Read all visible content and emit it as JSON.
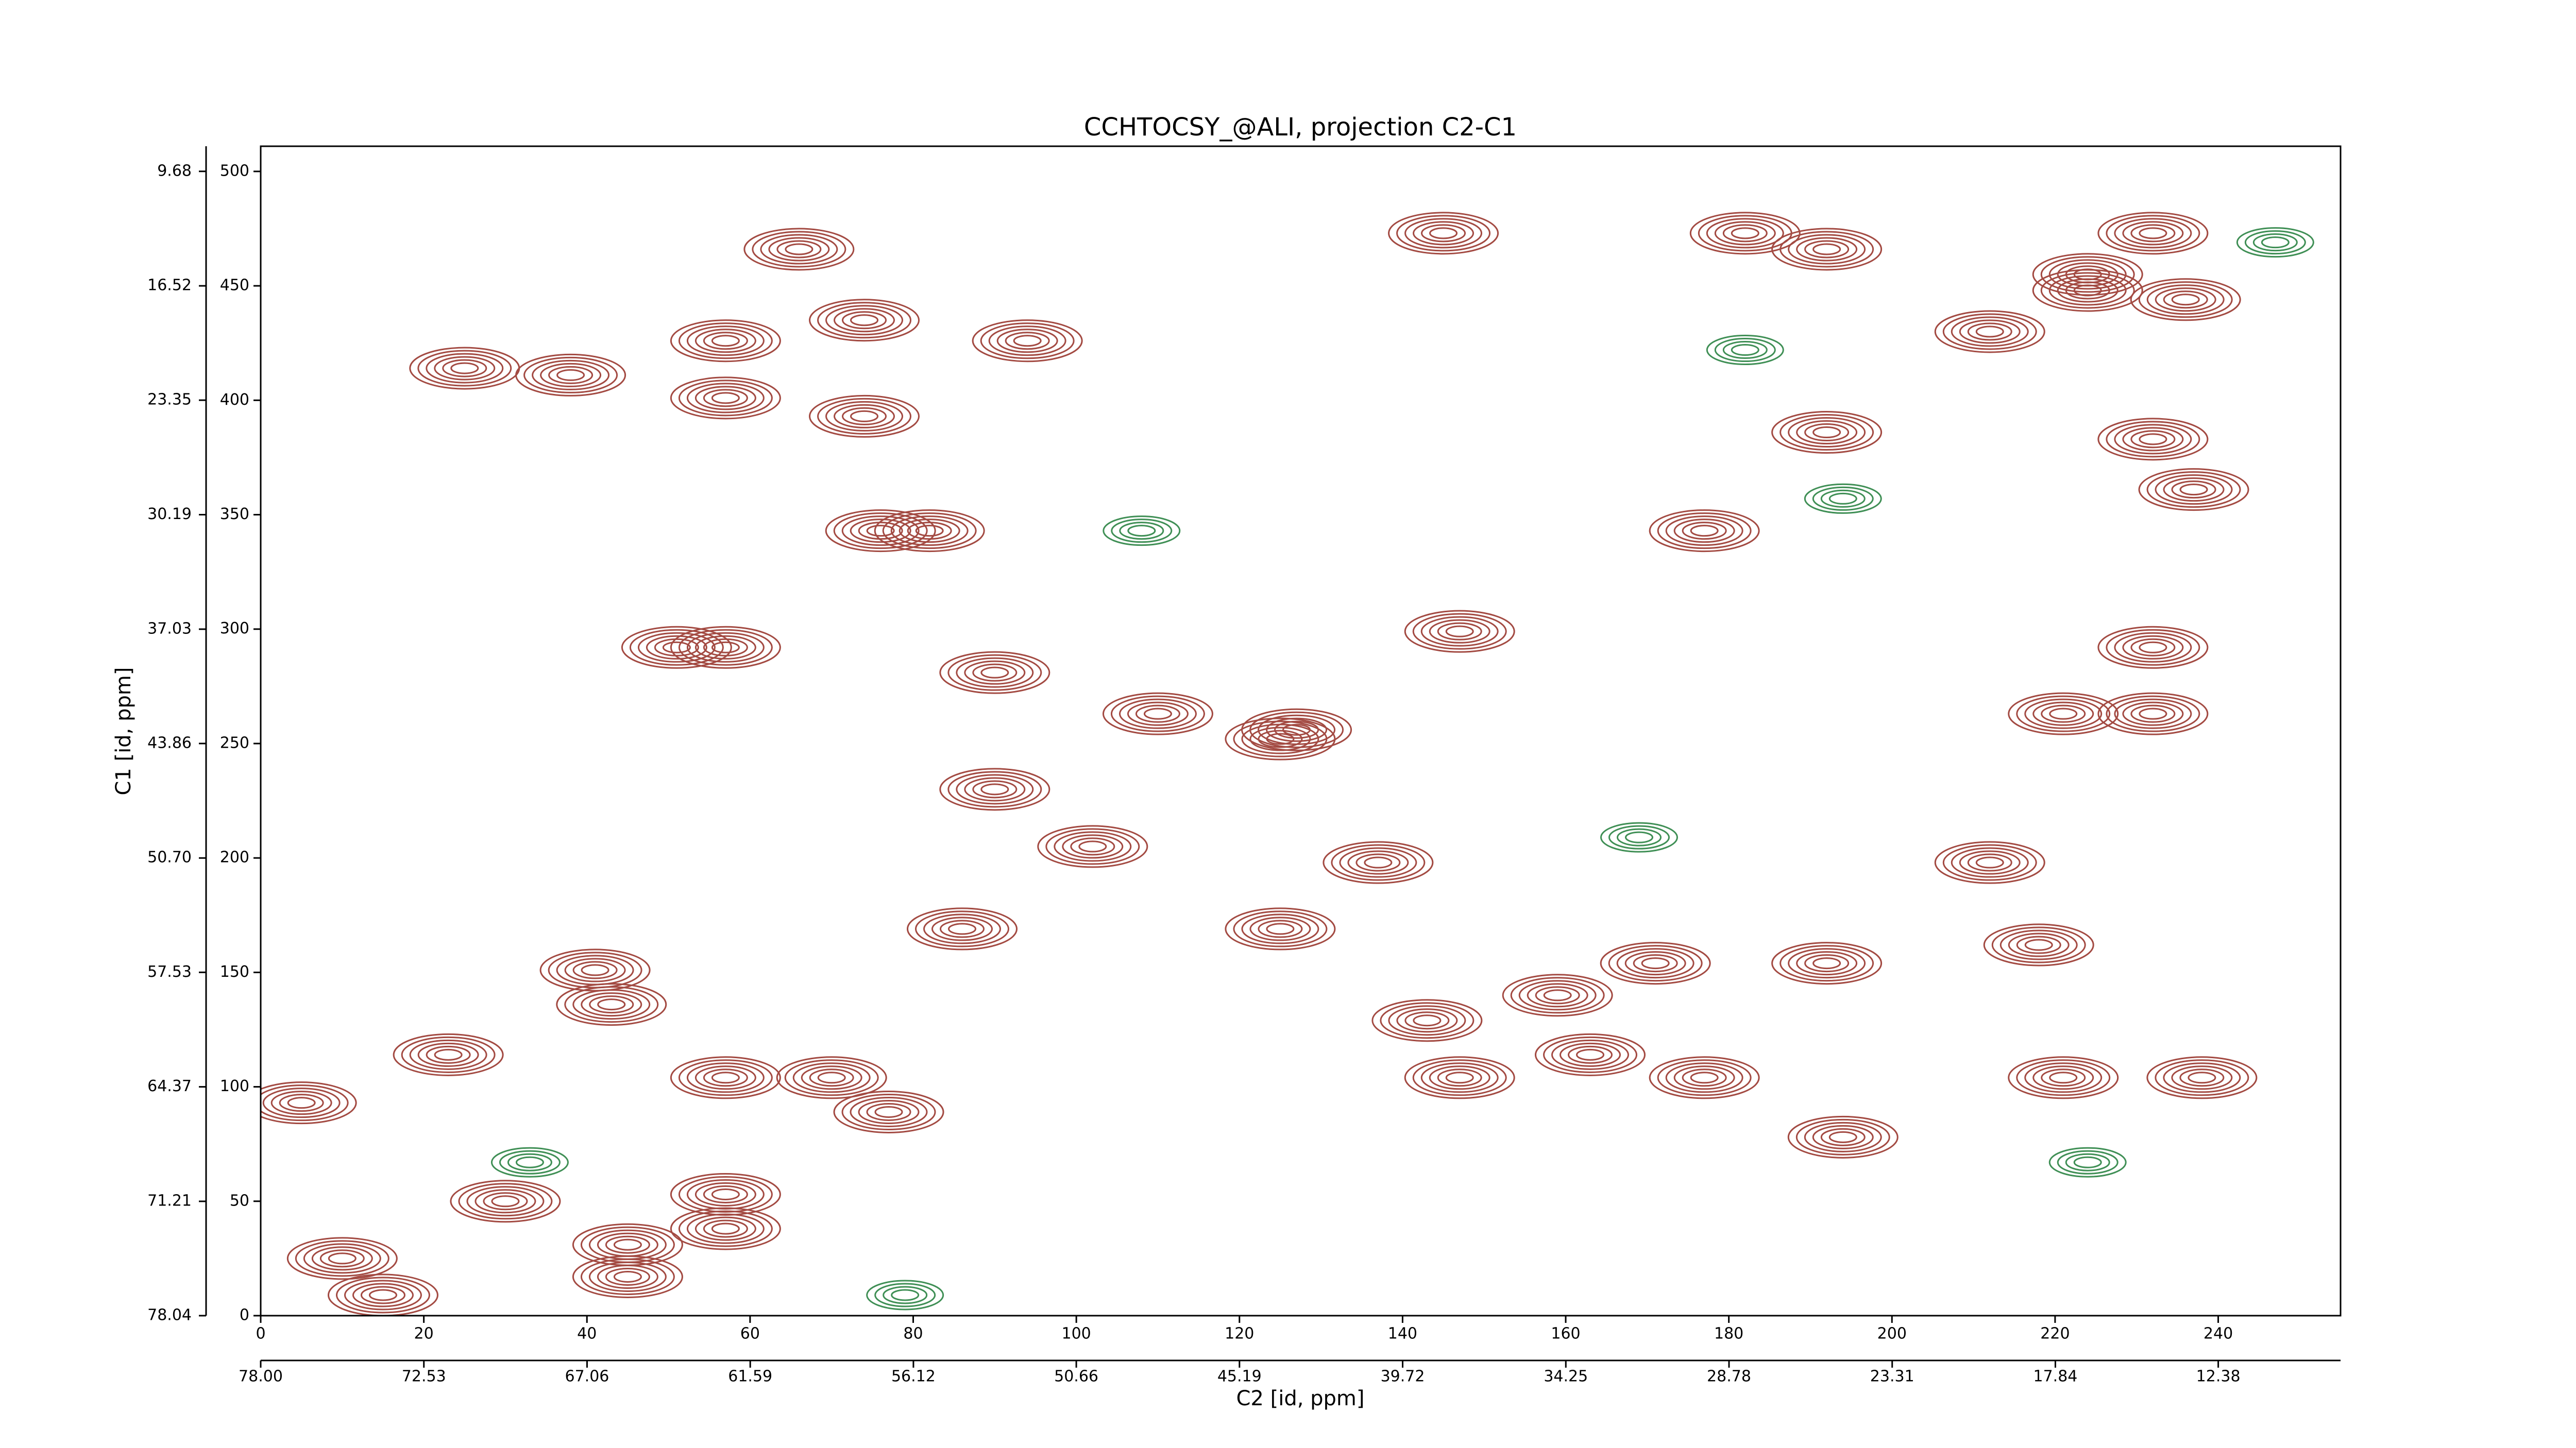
{
  "chart_data": {
    "type": "contour",
    "title": "CCHTOCSY_@ALI, projection C2-C1",
    "xlabel": "C2 [id, ppm]",
    "ylabel": "C1 [id, ppm]",
    "xlim": [
      0,
      255
    ],
    "ylim": [
      0,
      511
    ],
    "xticks": [
      0,
      20,
      40,
      60,
      80,
      100,
      120,
      140,
      160,
      180,
      200,
      220,
      240
    ],
    "yticks": [
      0,
      50,
      100,
      150,
      200,
      250,
      300,
      350,
      400,
      450,
      500
    ],
    "x2lim": [
      78.0,
      8.28
    ],
    "x2ticks": [
      {
        "value": 78.0,
        "label": "78.00"
      },
      {
        "value": 72.53,
        "label": "72.53"
      },
      {
        "value": 67.06,
        "label": "67.06"
      },
      {
        "value": 61.59,
        "label": "61.59"
      },
      {
        "value": 56.12,
        "label": "56.12"
      },
      {
        "value": 50.66,
        "label": "50.66"
      },
      {
        "value": 45.19,
        "label": "45.19"
      },
      {
        "value": 39.72,
        "label": "39.72"
      },
      {
        "value": 34.25,
        "label": "34.25"
      },
      {
        "value": 28.78,
        "label": "28.78"
      },
      {
        "value": 23.31,
        "label": "23.31"
      },
      {
        "value": 17.84,
        "label": "17.84"
      },
      {
        "value": 12.38,
        "label": "12.38"
      }
    ],
    "y2lim": [
      78.04,
      8.18
    ],
    "y2ticks": [
      {
        "value": 78.04,
        "label": "78.04"
      },
      {
        "value": 71.21,
        "label": "71.21"
      },
      {
        "value": 64.37,
        "label": "64.37"
      },
      {
        "value": 57.53,
        "label": "57.53"
      },
      {
        "value": 50.7,
        "label": "50.70"
      },
      {
        "value": 43.86,
        "label": "43.86"
      },
      {
        "value": 37.03,
        "label": "37.03"
      },
      {
        "value": 30.19,
        "label": "30.19"
      },
      {
        "value": 23.35,
        "label": "23.35"
      },
      {
        "value": 16.52,
        "label": "16.52"
      },
      {
        "value": 9.68,
        "label": "9.68"
      }
    ],
    "positive_peaks": {
      "color": "#a34a42",
      "x": [
        57,
        74,
        94,
        66,
        76,
        82,
        90,
        57,
        74,
        25,
        38,
        57,
        51,
        102,
        90,
        127,
        110,
        145,
        192,
        182,
        232,
        236,
        224,
        232,
        237,
        232,
        221,
        232,
        212,
        218,
        192,
        171,
        159,
        143,
        163,
        177,
        147,
        238,
        221,
        194,
        137,
        125,
        41,
        43,
        23,
        70,
        77,
        57,
        57,
        45,
        45,
        15,
        5,
        10,
        30,
        57,
        86,
        125,
        147,
        177,
        192,
        212,
        224
      ],
      "y": [
        426,
        435,
        426,
        466,
        343,
        343,
        281,
        401,
        393,
        414,
        411,
        292,
        292,
        205,
        230,
        256,
        263,
        473,
        466,
        473,
        473,
        444,
        448,
        383,
        361,
        292,
        263,
        263,
        198,
        162,
        154,
        154,
        140,
        129,
        114,
        104,
        104,
        104,
        104,
        78,
        198,
        169,
        151,
        136,
        114,
        104,
        89,
        53,
        38,
        31,
        17,
        9,
        93,
        25,
        50,
        104,
        169,
        252,
        299,
        343,
        386,
        430,
        455
      ]
    },
    "negative_peaks": {
      "color": "#3f8f55",
      "x": [
        247,
        108,
        169,
        79,
        33,
        194,
        224,
        182
      ],
      "y": [
        469,
        343,
        209,
        9,
        67,
        357,
        67,
        422
      ]
    }
  }
}
